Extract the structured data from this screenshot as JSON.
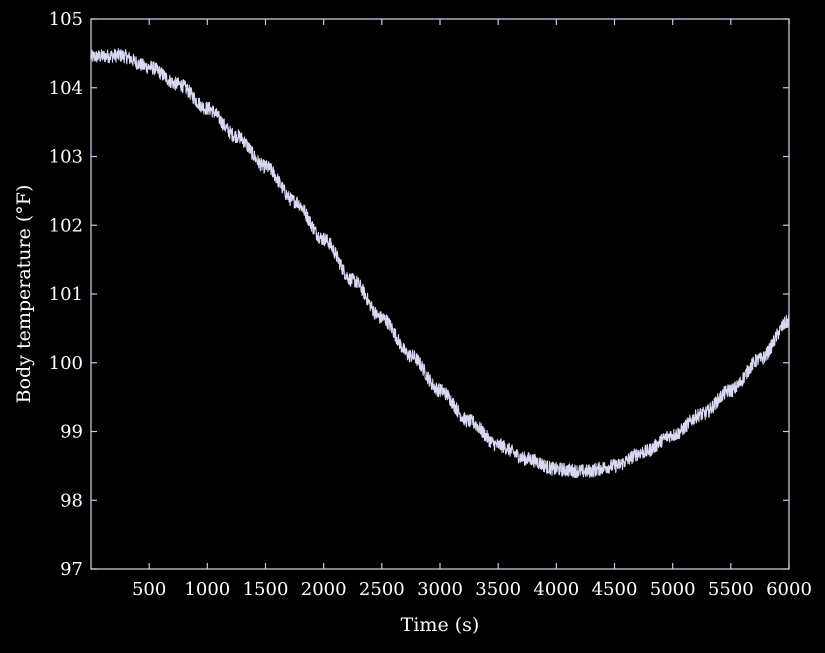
{
  "chart_data": {
    "type": "line",
    "xlabel": "Time (s)",
    "ylabel": "Body temperature (°F)",
    "xlim": [
      0,
      6000
    ],
    "ylim": [
      97,
      105
    ],
    "xticks": [
      500,
      1000,
      1500,
      2000,
      2500,
      3000,
      3500,
      4000,
      4500,
      5000,
      5500,
      6000
    ],
    "yticks": [
      97,
      98,
      99,
      100,
      101,
      102,
      103,
      104,
      105
    ],
    "grid": false,
    "colors": {
      "background": "#000000",
      "axes": "#c8c8dc",
      "line": "#d8d8ee"
    },
    "series": [
      {
        "x": [
          0,
          250,
          500,
          750,
          1000,
          1250,
          1500,
          1750,
          2000,
          2250,
          2500,
          2750,
          3000,
          3250,
          3500,
          3750,
          4000,
          4250,
          4500,
          4750,
          5000,
          5250,
          5500,
          5750,
          6000
        ],
        "values": [
          104.45,
          104.47,
          104.3,
          104.05,
          103.7,
          103.3,
          102.85,
          102.35,
          101.8,
          101.2,
          100.65,
          100.1,
          99.6,
          99.15,
          98.8,
          98.6,
          98.45,
          98.42,
          98.5,
          98.7,
          98.95,
          99.25,
          99.6,
          100.05,
          100.6
        ]
      }
    ],
    "noise_amplitude": 0.1
  }
}
